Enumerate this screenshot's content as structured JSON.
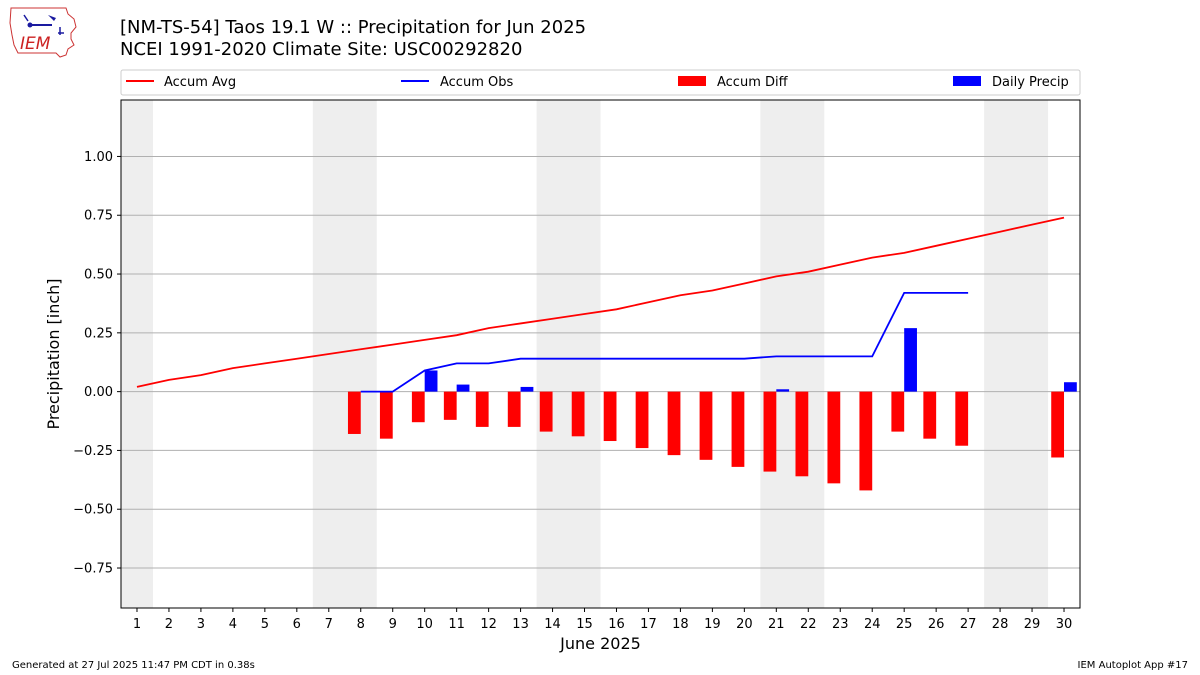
{
  "header": {
    "title_line1": "[NM-TS-54] Taos 19.1 W :: Precipitation for Jun 2025",
    "title_line2": "NCEI 1991-2020 Climate Site: USC00292820",
    "logo_text": "IEM"
  },
  "footer": {
    "generated": "Generated at 27 Jul 2025 11:47 PM CDT in 0.38s",
    "app": "IEM Autoplot App #17"
  },
  "colors": {
    "accum_avg": "#ff0000",
    "accum_obs": "#0000ff",
    "accum_diff": "#ff0000",
    "daily_precip": "#0000ff",
    "weekend_shading": "#eeeeee",
    "grid": "#b0b0b0"
  },
  "chart_data": {
    "type": "bar",
    "xlabel": "June 2025",
    "ylabel": "Precipitation [inch]",
    "xlim": [
      0.5,
      30.5
    ],
    "ylim": [
      -0.92,
      1.24
    ],
    "y_ticks": [
      -0.75,
      -0.5,
      -0.25,
      0.0,
      0.25,
      0.5,
      0.75,
      1.0
    ],
    "y_tick_labels": [
      "−0.75",
      "−0.50",
      "−0.25",
      "0.00",
      "0.25",
      "0.50",
      "0.75",
      "1.00"
    ],
    "x_ticks": [
      1,
      2,
      3,
      4,
      5,
      6,
      7,
      8,
      9,
      10,
      11,
      12,
      13,
      14,
      15,
      16,
      17,
      18,
      19,
      20,
      21,
      22,
      23,
      24,
      25,
      26,
      27,
      28,
      29,
      30
    ],
    "grid": "horizontal",
    "legend_position": "top",
    "shaded_days": [
      [
        0.5,
        1.5
      ],
      [
        6.5,
        8.5
      ],
      [
        13.5,
        15.5
      ],
      [
        20.5,
        22.5
      ],
      [
        27.5,
        29.5
      ]
    ],
    "series": [
      {
        "name": "Accum Avg",
        "kind": "line",
        "days": [
          1,
          2,
          3,
          4,
          5,
          6,
          7,
          8,
          9,
          10,
          11,
          12,
          13,
          14,
          15,
          16,
          17,
          18,
          19,
          20,
          21,
          22,
          23,
          24,
          25,
          26,
          27,
          28,
          29,
          30
        ],
        "values": [
          0.02,
          0.05,
          0.07,
          0.1,
          0.12,
          0.14,
          0.16,
          0.18,
          0.2,
          0.22,
          0.24,
          0.27,
          0.29,
          0.31,
          0.33,
          0.35,
          0.38,
          0.41,
          0.43,
          0.46,
          0.49,
          0.51,
          0.54,
          0.57,
          0.59,
          0.62,
          0.65,
          0.68,
          0.71,
          0.74
        ]
      },
      {
        "name": "Accum Obs",
        "kind": "line",
        "days": [
          8,
          9,
          10,
          11,
          12,
          13,
          14,
          15,
          16,
          17,
          18,
          19,
          20,
          21,
          22,
          23,
          24,
          25,
          26,
          27
        ],
        "values": [
          0.0,
          0.0,
          0.09,
          0.12,
          0.12,
          0.14,
          0.14,
          0.14,
          0.14,
          0.14,
          0.14,
          0.14,
          0.14,
          0.15,
          0.15,
          0.15,
          0.15,
          0.42,
          0.42,
          0.42
        ]
      },
      {
        "name": "Accum Diff",
        "kind": "bar",
        "days": [
          8,
          9,
          10,
          11,
          12,
          13,
          14,
          15,
          16,
          17,
          18,
          19,
          20,
          21,
          22,
          23,
          24,
          25,
          26,
          27,
          30
        ],
        "values": [
          -0.18,
          -0.2,
          -0.13,
          -0.12,
          -0.15,
          -0.15,
          -0.17,
          -0.19,
          -0.21,
          -0.24,
          -0.27,
          -0.29,
          -0.32,
          -0.34,
          -0.36,
          -0.39,
          -0.42,
          -0.17,
          -0.2,
          -0.23,
          -0.28
        ]
      },
      {
        "name": "Daily Precip",
        "kind": "bar",
        "days": [
          10,
          11,
          13,
          21,
          25,
          30
        ],
        "values": [
          0.09,
          0.03,
          0.02,
          0.01,
          0.27,
          0.04
        ]
      }
    ]
  }
}
